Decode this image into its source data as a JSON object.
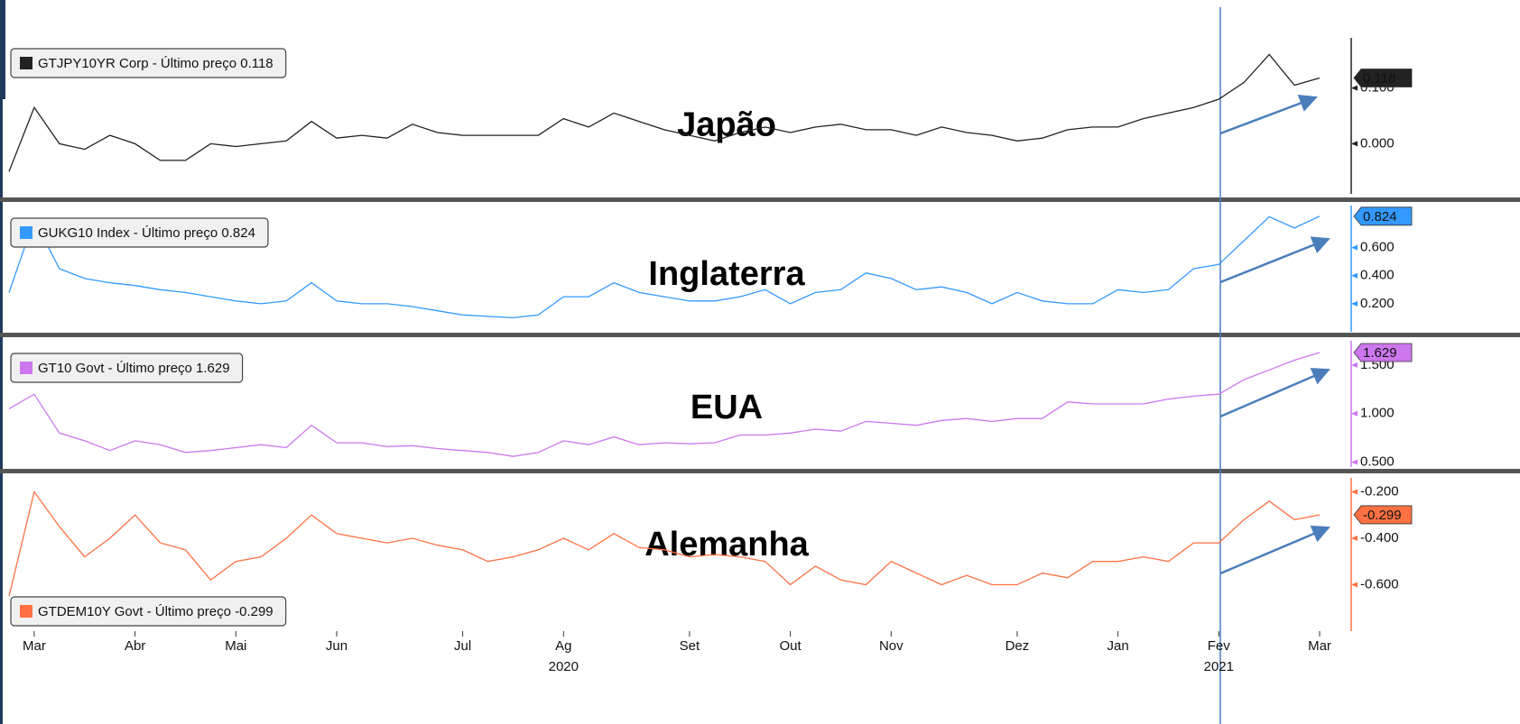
{
  "chart_data": {
    "type": "line",
    "categories": [
      null,
      "Mar",
      null,
      null,
      null,
      "Abr",
      null,
      null,
      null,
      "Mai",
      null,
      null,
      null,
      "Jun",
      null,
      null,
      null,
      null,
      "Jul",
      null,
      null,
      null,
      "Ag",
      null,
      null,
      null,
      null,
      "Set",
      null,
      null,
      null,
      "Out",
      null,
      null,
      null,
      "Nov",
      null,
      null,
      null,
      null,
      "Dez",
      null,
      null,
      null,
      "Jan",
      null,
      null,
      null,
      "Fev",
      null,
      null,
      null,
      "Mar"
    ],
    "year_labels": [
      null,
      null,
      null,
      null,
      null,
      null,
      null,
      null,
      null,
      null,
      null,
      null,
      null,
      null,
      null,
      null,
      null,
      null,
      null,
      null,
      null,
      null,
      "2020",
      null,
      null,
      null,
      null,
      null,
      null,
      null,
      null,
      null,
      null,
      null,
      null,
      null,
      null,
      null,
      null,
      null,
      null,
      null,
      null,
      null,
      null,
      null,
      null,
      null,
      "2021",
      null,
      null,
      null,
      null
    ],
    "panels": [
      {
        "title": "Japão",
        "legend": "upper left",
        "ylim": [
          -0.09,
          0.19
        ],
        "yticks": [
          {
            "value": 0.1,
            "label": "0.100"
          },
          {
            "value": 0,
            "label": "0.000"
          }
        ],
        "series": [
          {
            "name": "GTJPY10YR Corp - Último preço 0.118",
            "color": "#222222",
            "tag_text": "#ffffff",
            "values": [
              -0.05,
              0.065,
              0,
              -0.01,
              0.015,
              0,
              -0.03,
              -0.03,
              0,
              -0.005,
              0,
              0.005,
              0.04,
              0.01,
              0.015,
              0.01,
              0.035,
              0.02,
              0.015,
              0.015,
              0.015,
              0.015,
              0.045,
              0.03,
              0.055,
              0.04,
              0.025,
              0.015,
              0.005,
              0.02,
              0.03,
              0.02,
              0.03,
              0.035,
              0.025,
              0.025,
              0.015,
              0.03,
              0.02,
              0.015,
              0.005,
              0.01,
              0.025,
              0.03,
              0.03,
              0.045,
              0.055,
              0.065,
              0.08,
              0.11,
              0.16,
              0.105,
              0.118
            ],
            "value_labels": [
              null,
              null,
              null,
              null,
              null,
              null,
              null,
              null,
              null,
              null,
              null,
              null,
              null,
              null,
              null,
              null,
              null,
              null,
              null,
              null,
              null,
              null,
              null,
              null,
              null,
              null,
              null,
              null,
              null,
              null,
              null,
              null,
              null,
              null,
              null,
              null,
              null,
              null,
              null,
              null,
              null,
              null,
              null,
              null,
              null,
              null,
              null,
              null,
              null,
              null,
              null,
              null,
              "0.118"
            ]
          }
        ]
      },
      {
        "title": "Inglaterra",
        "legend": "upper left",
        "ylim": [
          0,
          0.9
        ],
        "yticks": [
          {
            "value": 0.6,
            "label": "0.600"
          },
          {
            "value": 0.4,
            "label": "0.400"
          },
          {
            "value": 0.2,
            "label": "0.200"
          }
        ],
        "series": [
          {
            "name": "GUKG10 Index - Último preço 0.824",
            "color": "#3399ff",
            "tag_text": "#ffffff",
            "values": [
              0.28,
              0.8,
              0.45,
              0.38,
              0.35,
              0.33,
              0.3,
              0.28,
              0.25,
              0.22,
              0.2,
              0.22,
              0.35,
              0.22,
              0.2,
              0.2,
              0.18,
              0.15,
              0.12,
              0.11,
              0.1,
              0.12,
              0.25,
              0.25,
              0.35,
              0.28,
              0.25,
              0.22,
              0.22,
              0.25,
              0.3,
              0.2,
              0.28,
              0.3,
              0.42,
              0.38,
              0.3,
              0.32,
              0.28,
              0.2,
              0.28,
              0.22,
              0.2,
              0.2,
              0.3,
              0.28,
              0.3,
              0.45,
              0.48,
              0.65,
              0.82,
              0.74,
              0.824
            ],
            "value_labels": [
              null,
              null,
              null,
              null,
              null,
              null,
              null,
              null,
              null,
              null,
              null,
              null,
              null,
              null,
              null,
              null,
              null,
              null,
              null,
              null,
              null,
              null,
              null,
              null,
              null,
              null,
              null,
              null,
              null,
              null,
              null,
              null,
              null,
              null,
              null,
              null,
              null,
              null,
              null,
              null,
              null,
              null,
              null,
              null,
              null,
              null,
              null,
              null,
              null,
              null,
              null,
              null,
              "0.824"
            ]
          }
        ]
      },
      {
        "title": "EUA",
        "legend": "upper left",
        "ylim": [
          0.45,
          1.75
        ],
        "yticks": [
          {
            "value": 1.5,
            "label": "1.500"
          },
          {
            "value": 1,
            "label": "1.000"
          },
          {
            "value": 0.5,
            "label": "0.500"
          }
        ],
        "series": [
          {
            "name": "GT10 Govt - Último preço 1.629",
            "color": "#cc77ee",
            "tag_text": "#000000",
            "values": [
              1.05,
              1.2,
              0.8,
              0.72,
              0.62,
              0.72,
              0.68,
              0.6,
              0.62,
              0.65,
              0.68,
              0.65,
              0.88,
              0.7,
              0.7,
              0.66,
              0.67,
              0.64,
              0.62,
              0.6,
              0.56,
              0.6,
              0.72,
              0.68,
              0.76,
              0.68,
              0.7,
              0.69,
              0.7,
              0.78,
              0.78,
              0.8,
              0.84,
              0.82,
              0.92,
              0.9,
              0.88,
              0.93,
              0.95,
              0.92,
              0.95,
              0.95,
              1.12,
              1.1,
              1.1,
              1.1,
              1.15,
              1.18,
              1.2,
              1.35,
              1.45,
              1.55,
              1.629
            ],
            "value_labels": [
              null,
              null,
              null,
              null,
              null,
              null,
              null,
              null,
              null,
              null,
              null,
              null,
              null,
              null,
              null,
              null,
              null,
              null,
              null,
              null,
              null,
              null,
              null,
              null,
              null,
              null,
              null,
              null,
              null,
              null,
              null,
              null,
              null,
              null,
              null,
              null,
              null,
              null,
              null,
              null,
              null,
              null,
              null,
              null,
              null,
              null,
              null,
              null,
              null,
              null,
              null,
              null,
              "1.629"
            ]
          }
        ]
      },
      {
        "title": "Alemanha",
        "legend": "lower left",
        "ylim": [
          -0.8,
          -0.14
        ],
        "yticks": [
          {
            "value": -0.2,
            "label": "-0.200"
          },
          {
            "value": -0.4,
            "label": "-0.400"
          },
          {
            "value": -0.6,
            "label": "-0.600"
          }
        ],
        "series": [
          {
            "name": "GTDEM10Y Govt - Último preço -0.299",
            "color": "#ff7043",
            "tag_text": "#000000",
            "values": [
              -0.65,
              -0.2,
              -0.35,
              -0.48,
              -0.4,
              -0.3,
              -0.42,
              -0.45,
              -0.58,
              -0.5,
              -0.48,
              -0.4,
              -0.3,
              -0.38,
              -0.4,
              -0.42,
              -0.4,
              -0.43,
              -0.45,
              -0.5,
              -0.48,
              -0.45,
              -0.4,
              -0.45,
              -0.38,
              -0.44,
              -0.45,
              -0.48,
              -0.47,
              -0.48,
              -0.5,
              -0.6,
              -0.52,
              -0.58,
              -0.6,
              -0.5,
              -0.55,
              -0.6,
              -0.56,
              -0.6,
              -0.6,
              -0.55,
              -0.57,
              -0.5,
              -0.5,
              -0.48,
              -0.5,
              -0.42,
              -0.42,
              -0.32,
              -0.24,
              -0.32,
              -0.299
            ],
            "value_labels": [
              null,
              null,
              null,
              null,
              null,
              null,
              null,
              null,
              null,
              null,
              null,
              null,
              null,
              null,
              null,
              null,
              null,
              null,
              null,
              null,
              null,
              null,
              null,
              null,
              null,
              null,
              null,
              null,
              null,
              null,
              null,
              null,
              null,
              null,
              null,
              null,
              null,
              null,
              null,
              null,
              null,
              null,
              null,
              null,
              null,
              null,
              null,
              null,
              null,
              null,
              null,
              null,
              "-0.299"
            ]
          }
        ]
      }
    ]
  }
}
